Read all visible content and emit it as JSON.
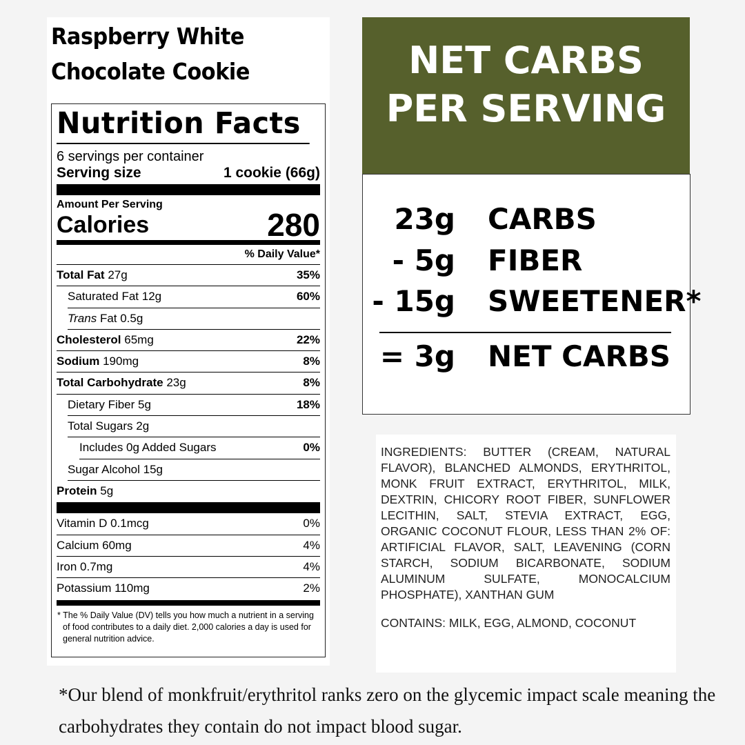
{
  "product_title": [
    "Raspberry White",
    "Chocolate Cookie"
  ],
  "label": {
    "heading": "Nutrition Facts",
    "servings": "6 servings per container",
    "serving_size_label": "Serving size",
    "serving_size_value": "1 cookie (66g)",
    "amount_per_serving": "Amount Per Serving",
    "calories_label": "Calories",
    "calories_value": "280",
    "daily_value_header": "% Daily Value*",
    "nutrients": [
      {
        "name": "Total Fat",
        "amount": "27g",
        "dv": "35%"
      },
      {
        "name": "Saturated Fat",
        "amount": "12g",
        "dv": "60%"
      },
      {
        "name": "Trans",
        "amount": "Fat 0.5g",
        "dv": ""
      },
      {
        "name": "Cholesterol",
        "amount": "65mg",
        "dv": "22%"
      },
      {
        "name": "Sodium",
        "amount": "190mg",
        "dv": "8%"
      },
      {
        "name": "Total Carbohydrate",
        "amount": "23g",
        "dv": "8%"
      },
      {
        "name": "Dietary Fiber",
        "amount": "5g",
        "dv": "18%"
      },
      {
        "name": "Total Sugars",
        "amount": "2g",
        "dv": ""
      },
      {
        "name": "Includes 0g Added Sugars",
        "amount": "",
        "dv": "0%"
      },
      {
        "name": "Sugar Alcohol",
        "amount": "15g",
        "dv": ""
      },
      {
        "name": "Protein",
        "amount": "5g",
        "dv": ""
      }
    ],
    "vitamins": [
      {
        "name": "Vitamin D",
        "amount": "0.1mcg",
        "dv": "0%"
      },
      {
        "name": "Calcium",
        "amount": "60mg",
        "dv": "4%"
      },
      {
        "name": "Iron",
        "amount": "0.7mg",
        "dv": "4%"
      },
      {
        "name": "Potassium",
        "amount": "110mg",
        "dv": "2%"
      }
    ],
    "footnote": "* The % Daily Value (DV) tells you how much a nutrient in a serving of food contributes to a daily diet. 2,000 calories a day is used for general nutrition advice."
  },
  "net_carbs": {
    "title": [
      "NET CARBS",
      "PER SERVING"
    ],
    "rows": [
      {
        "amount": "23g",
        "label": "CARBS"
      },
      {
        "amount": "- 5g",
        "label": "FIBER"
      },
      {
        "amount": "- 15g",
        "label": "SWEETENER*"
      }
    ],
    "result": {
      "amount": "= 3g",
      "label": "NET CARBS"
    },
    "accent_color": "#56602c"
  },
  "ingredients": {
    "text": "INGREDIENTS: BUTTER (CREAM, NATURAL FLAVOR), BLANCHED ALMONDS, ERYTHRITOL, MONK FRUIT EXTRACT, ERYTHRITOL, MILK, DEXTRIN, CHICORY ROOT FIBER, SUNFLOWER LECITHIN, SALT, STEVIA EXTRACT, EGG, ORGANIC COCONUT FLOUR, LESS THAN 2% OF: ARTIFICIAL FLAVOR, SALT, LEAVENING (CORN STARCH, SODIUM BICARBONATE, SODIUM ALUMINUM SULFATE, MONOCALCIUM PHOSPHATE), XANTHAN GUM",
    "contains": "CONTAINS: MILK, EGG, ALMOND, COCONUT"
  },
  "footnote": "*Our blend of monkfruit/erythritol ranks zero on the glycemic impact scale meaning the carbohydrates they contain do not impact blood sugar."
}
